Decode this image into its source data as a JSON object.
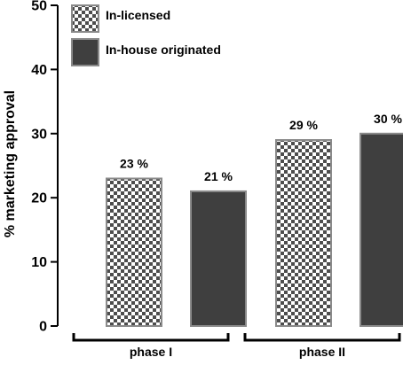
{
  "chart_data": {
    "type": "bar",
    "title": "",
    "xlabel": "",
    "ylabel": "% marketing approval",
    "ylim": [
      0,
      50
    ],
    "yticks": [
      "0",
      "10",
      "20",
      "30",
      "40",
      "50"
    ],
    "grid": false,
    "legend_position": "top-left",
    "groups": [
      "phase I",
      "phase II"
    ],
    "series": [
      {
        "name": "In-licensed",
        "pattern": "checkerboard",
        "colors": [
          "#4d4d4d",
          "#ffffff"
        ],
        "values": [
          23,
          29
        ],
        "labels": [
          "23 %",
          "29 %"
        ]
      },
      {
        "name": "In-house originated",
        "pattern": "solid",
        "colors": [
          "#3f3f3f"
        ],
        "values": [
          21,
          30
        ],
        "labels": [
          "21 %",
          "30 %"
        ]
      }
    ]
  }
}
